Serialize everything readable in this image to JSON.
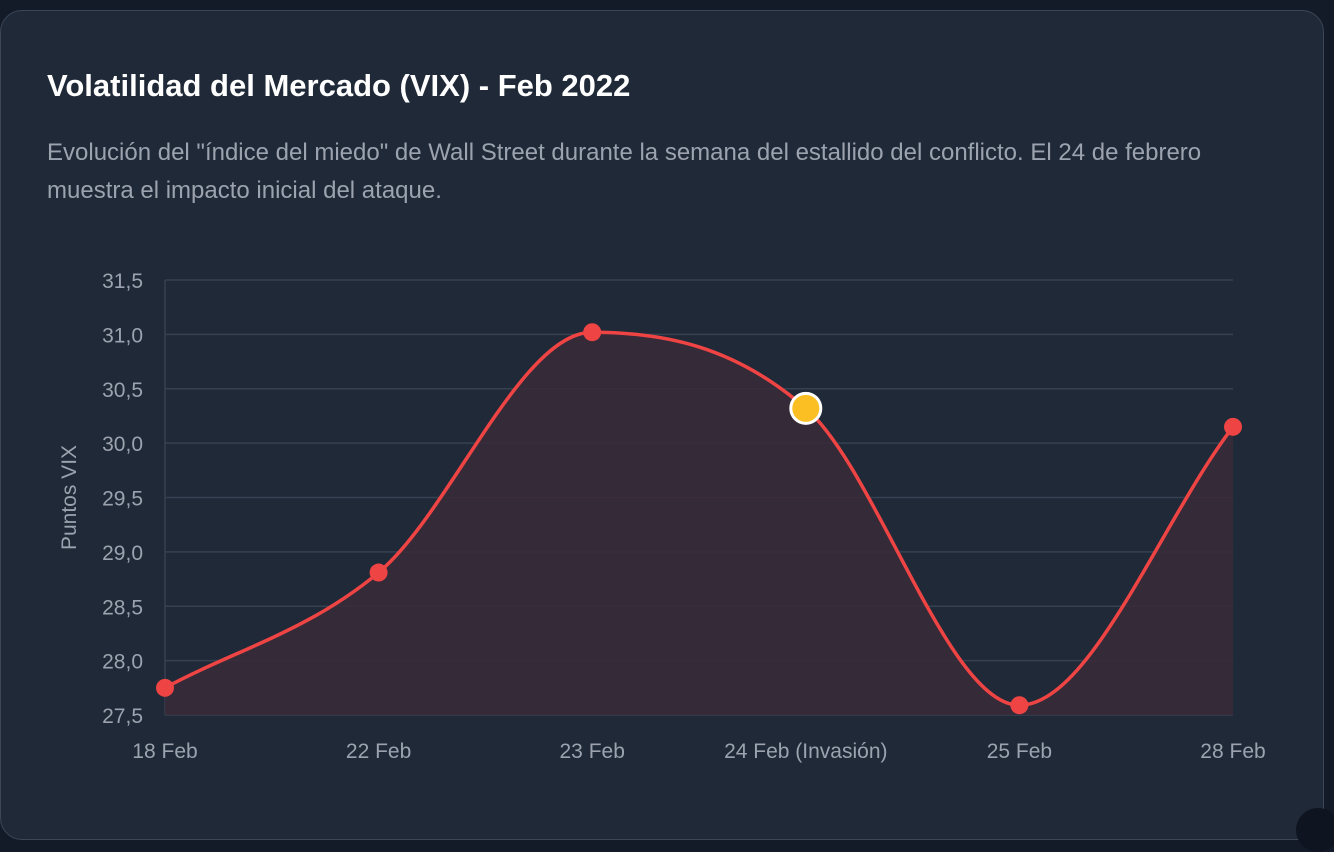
{
  "card": {
    "title": "Volatilidad del Mercado (VIX) - Feb 2022",
    "subtitle": "Evolución del \"índice del miedo\" de Wall Street durante la semana del estallido del conflicto. El 24 de febrero muestra el impacto inicial del ataque."
  },
  "chart_data": {
    "type": "line",
    "title": "",
    "xlabel": "",
    "ylabel": "Puntos VIX",
    "categories": [
      "18 Feb",
      "22 Feb",
      "23 Feb",
      "24 Feb (Invasión)",
      "25 Feb",
      "28 Feb"
    ],
    "series": [
      {
        "values": [
          27.75,
          28.81,
          31.02,
          30.32,
          27.59,
          30.15
        ]
      }
    ],
    "highlight_index": 3,
    "ylim": [
      27.5,
      31.5
    ],
    "yticks": [
      "27,5",
      "28,0",
      "28,5",
      "29,0",
      "29,5",
      "30,0",
      "30,5",
      "31,0",
      "31,5"
    ],
    "grid": true,
    "area_fill": true,
    "smooth": true,
    "colors": {
      "line": "#ef4444",
      "point": "#ef4444",
      "highlight": "#fbbf24",
      "highlight_stroke": "#ffffff",
      "fill": "#3a2a38",
      "grid": "#364152",
      "tick_text": "#9ca3af"
    }
  }
}
